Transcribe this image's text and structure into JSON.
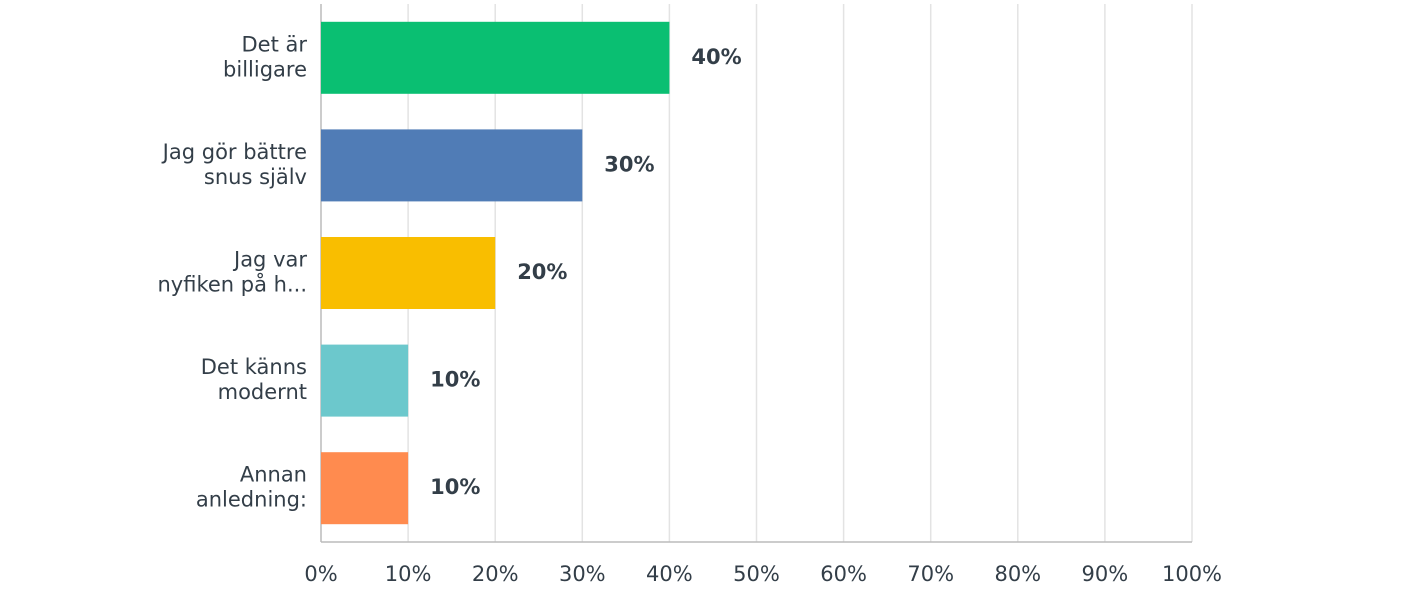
{
  "chart_data": {
    "type": "hbar",
    "categories": [
      [
        "Det är",
        "billigare"
      ],
      [
        "Jag gör bättre",
        "snus själv"
      ],
      [
        "Jag var",
        "nyfiken på h..."
      ],
      [
        "Det känns",
        "modernt"
      ],
      [
        "Annan",
        "anledning:"
      ]
    ],
    "values": [
      40,
      30,
      20,
      10,
      10
    ],
    "value_labels": [
      "40%",
      "30%",
      "20%",
      "10%",
      "10%"
    ],
    "colors": [
      "#0abf72",
      "#507cb6",
      "#f9be00",
      "#6cc8cc",
      "#ff8b4f"
    ],
    "xlim": [
      0,
      100
    ],
    "xticks": [
      {
        "value": 0,
        "label": "0%"
      },
      {
        "value": 10,
        "label": "10%"
      },
      {
        "value": 20,
        "label": "20%"
      },
      {
        "value": 30,
        "label": "30%"
      },
      {
        "value": 40,
        "label": "40%"
      },
      {
        "value": 50,
        "label": "50%"
      },
      {
        "value": 60,
        "label": "60%"
      },
      {
        "value": 70,
        "label": "70%"
      },
      {
        "value": 80,
        "label": "80%"
      },
      {
        "value": 90,
        "label": "90%"
      },
      {
        "value": 100,
        "label": "100%"
      }
    ],
    "grid": true
  }
}
